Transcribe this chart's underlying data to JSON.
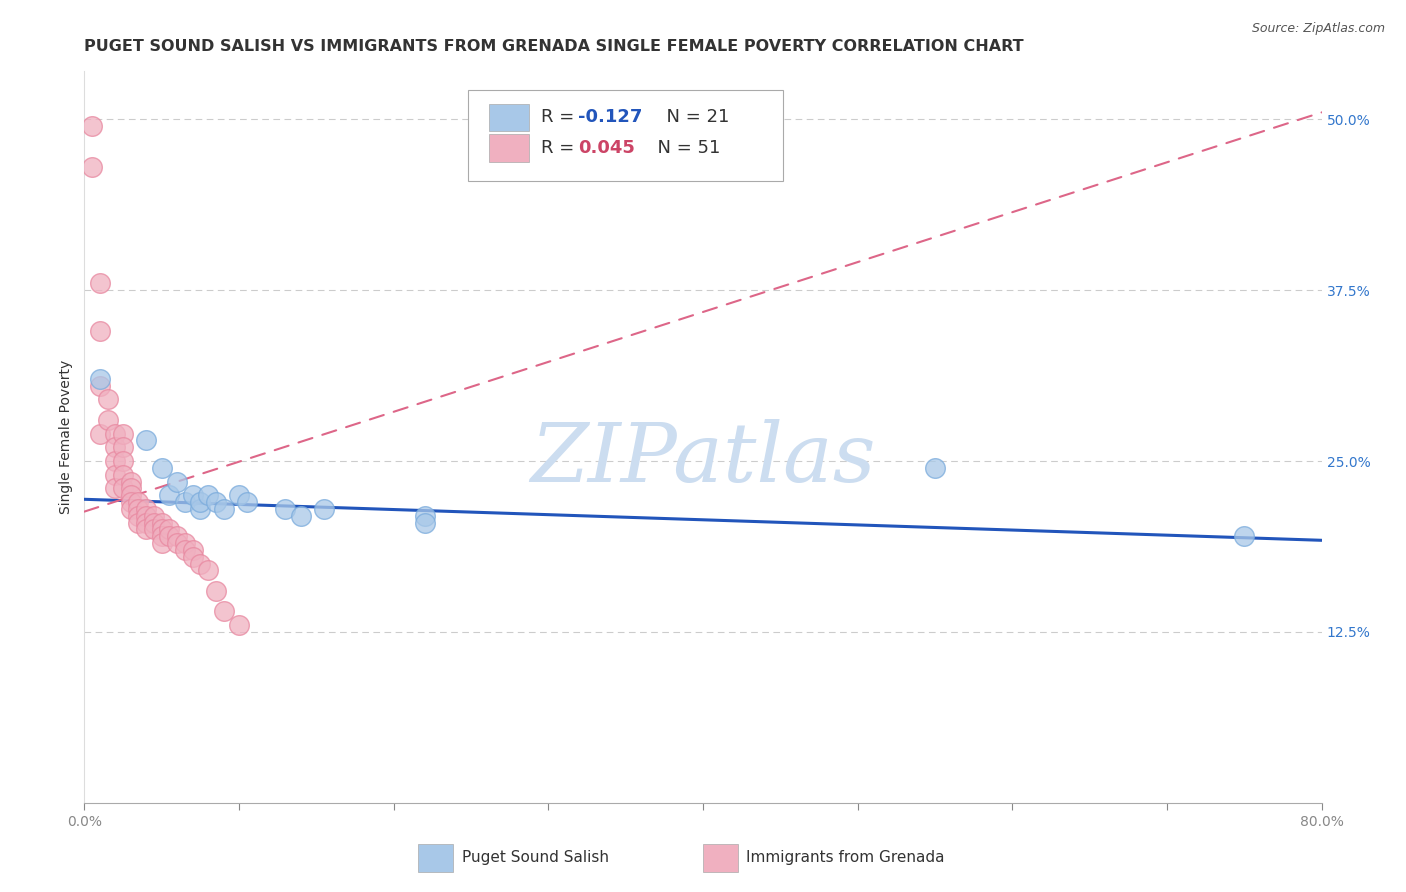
{
  "title": "PUGET SOUND SALISH VS IMMIGRANTS FROM GRENADA SINGLE FEMALE POVERTY CORRELATION CHART",
  "source": "Source: ZipAtlas.com",
  "xlim": [
    0.0,
    0.8
  ],
  "ylim": [
    0.0,
    0.535
  ],
  "series1_label": "Puget Sound Salish",
  "series1_R": -0.127,
  "series1_N": 21,
  "series1_color": "#a8c8e8",
  "series1_edge": "#7aabdc",
  "series1_x": [
    0.01,
    0.04,
    0.05,
    0.055,
    0.06,
    0.065,
    0.07,
    0.075,
    0.075,
    0.08,
    0.085,
    0.09,
    0.1,
    0.105,
    0.13,
    0.14,
    0.155,
    0.22,
    0.22,
    0.55,
    0.75
  ],
  "series1_y": [
    0.31,
    0.265,
    0.245,
    0.225,
    0.235,
    0.22,
    0.225,
    0.215,
    0.22,
    0.225,
    0.22,
    0.215,
    0.225,
    0.22,
    0.215,
    0.21,
    0.215,
    0.21,
    0.205,
    0.245,
    0.195
  ],
  "series2_label": "Immigrants from Grenada",
  "series2_R": 0.045,
  "series2_N": 51,
  "series2_color": "#f0b0c0",
  "series2_edge": "#e888a0",
  "series2_x": [
    0.005,
    0.005,
    0.01,
    0.01,
    0.01,
    0.01,
    0.015,
    0.015,
    0.02,
    0.02,
    0.02,
    0.02,
    0.02,
    0.025,
    0.025,
    0.025,
    0.025,
    0.025,
    0.03,
    0.03,
    0.03,
    0.03,
    0.03,
    0.035,
    0.035,
    0.035,
    0.035,
    0.04,
    0.04,
    0.04,
    0.04,
    0.045,
    0.045,
    0.045,
    0.05,
    0.05,
    0.05,
    0.05,
    0.055,
    0.055,
    0.06,
    0.06,
    0.065,
    0.065,
    0.07,
    0.07,
    0.075,
    0.08,
    0.085,
    0.09,
    0.1
  ],
  "series2_y": [
    0.495,
    0.465,
    0.38,
    0.345,
    0.305,
    0.27,
    0.295,
    0.28,
    0.27,
    0.26,
    0.25,
    0.24,
    0.23,
    0.27,
    0.26,
    0.25,
    0.24,
    0.23,
    0.235,
    0.23,
    0.225,
    0.22,
    0.215,
    0.22,
    0.215,
    0.21,
    0.205,
    0.215,
    0.21,
    0.205,
    0.2,
    0.21,
    0.205,
    0.2,
    0.205,
    0.2,
    0.195,
    0.19,
    0.2,
    0.195,
    0.195,
    0.19,
    0.19,
    0.185,
    0.185,
    0.18,
    0.175,
    0.17,
    0.155,
    0.14,
    0.13
  ],
  "trend1_x0": 0.0,
  "trend1_x1": 0.8,
  "trend1_y0": 0.222,
  "trend1_y1": 0.192,
  "trend2_x0": 0.0,
  "trend2_x1": 0.8,
  "trend2_y0": 0.213,
  "trend2_y1": 0.505,
  "grid_color": "#cccccc",
  "background_color": "#ffffff",
  "watermark": "ZIPatlas",
  "watermark_color": "#ccddf0",
  "legend_R1_color": "#2255bb",
  "legend_R2_color": "#cc4466",
  "title_color": "#333333",
  "title_fontsize": 11.5,
  "source_fontsize": 9,
  "tick_fontsize": 10,
  "ytick_color": "#3377cc",
  "ytick_vals": [
    0.125,
    0.25,
    0.375,
    0.5
  ],
  "ytick_labels": [
    "12.5%",
    "25.0%",
    "37.5%",
    "50.0%"
  ],
  "xtick_vals": [
    0.0,
    0.8
  ],
  "xtick_labels": [
    "0.0%",
    "80.0%"
  ]
}
